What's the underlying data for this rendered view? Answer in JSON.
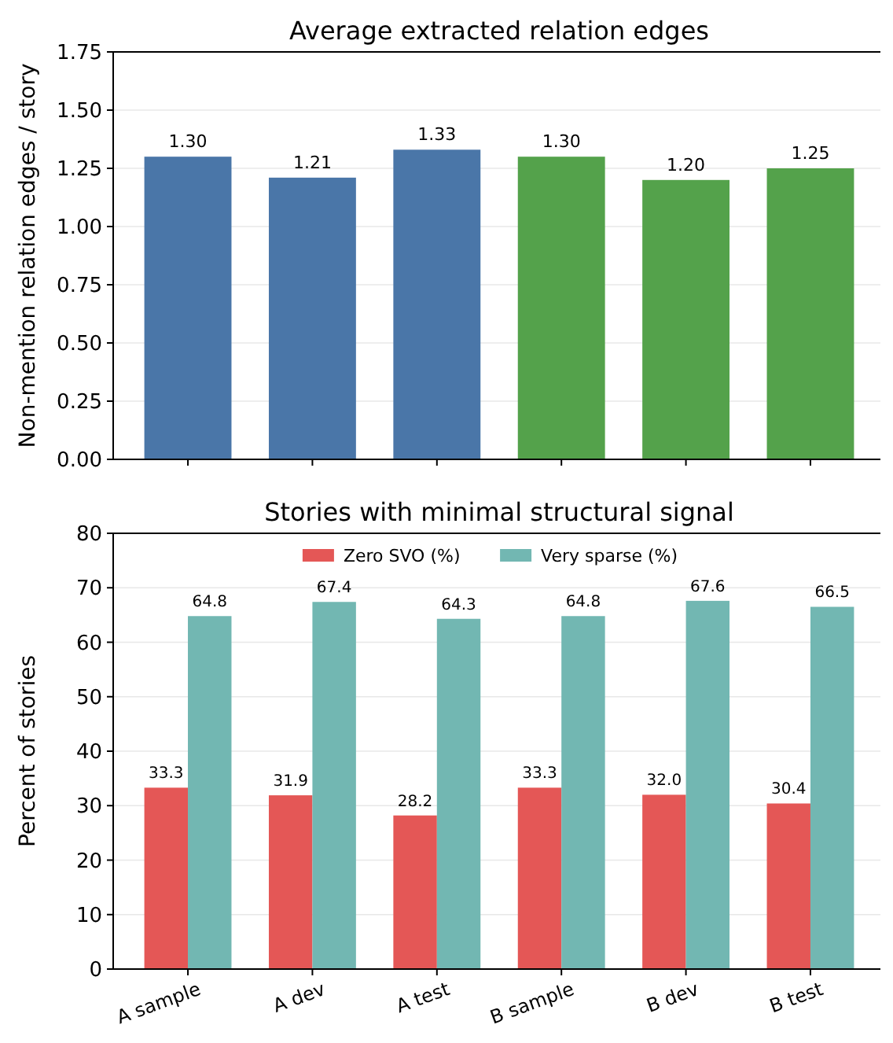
{
  "chart_data": [
    {
      "type": "bar",
      "title": "Average extracted relation edges",
      "ylabel": "Non-mention relation edges / story",
      "categories": [
        null,
        null,
        null,
        null,
        null,
        null
      ],
      "values": [
        1.3,
        1.21,
        1.33,
        1.3,
        1.2,
        1.25
      ],
      "value_labels": [
        "1.30",
        "1.21",
        "1.33",
        "1.30",
        "1.20",
        "1.25"
      ],
      "colors": [
        "#4a76a8",
        "#4a76a8",
        "#4a76a8",
        "#54a24b",
        "#54a24b",
        "#54a24b"
      ],
      "ylim": [
        0,
        1.75
      ],
      "yticks": [
        {
          "value": 0,
          "label": "0.00"
        },
        {
          "value": 0.25,
          "label": "0.25"
        },
        {
          "value": 0.5,
          "label": "0.50"
        },
        {
          "value": 0.75,
          "label": "0.75"
        },
        {
          "value": 1,
          "label": "1.00"
        },
        {
          "value": 1.25,
          "label": "1.25"
        },
        {
          "value": 1.5,
          "label": "1.50"
        },
        {
          "value": 1.75,
          "label": "1.75"
        }
      ],
      "grid": "y"
    },
    {
      "type": "bar",
      "title": "Stories with minimal structural signal",
      "ylabel": "Percent of stories",
      "categories": [
        "A sample",
        "A dev",
        "A test",
        "B sample",
        "B dev",
        "B test"
      ],
      "series": [
        {
          "name": "Zero SVO (%)",
          "color": "#e45756",
          "values": [
            33.3,
            31.9,
            28.2,
            33.3,
            32.0,
            30.4
          ],
          "value_labels": [
            "33.3",
            "31.9",
            "28.2",
            "33.3",
            "32.0",
            "30.4"
          ]
        },
        {
          "name": "Very sparse (%)",
          "color": "#72b7b2",
          "values": [
            64.8,
            67.4,
            64.3,
            64.8,
            67.6,
            66.5
          ],
          "value_labels": [
            "64.8",
            "67.4",
            "64.3",
            "64.8",
            "67.6",
            "66.5"
          ]
        }
      ],
      "ylim": [
        0,
        80
      ],
      "yticks": [
        0,
        10,
        20,
        30,
        40,
        50,
        60,
        70,
        80
      ],
      "grid": "y",
      "legend": "top"
    }
  ]
}
